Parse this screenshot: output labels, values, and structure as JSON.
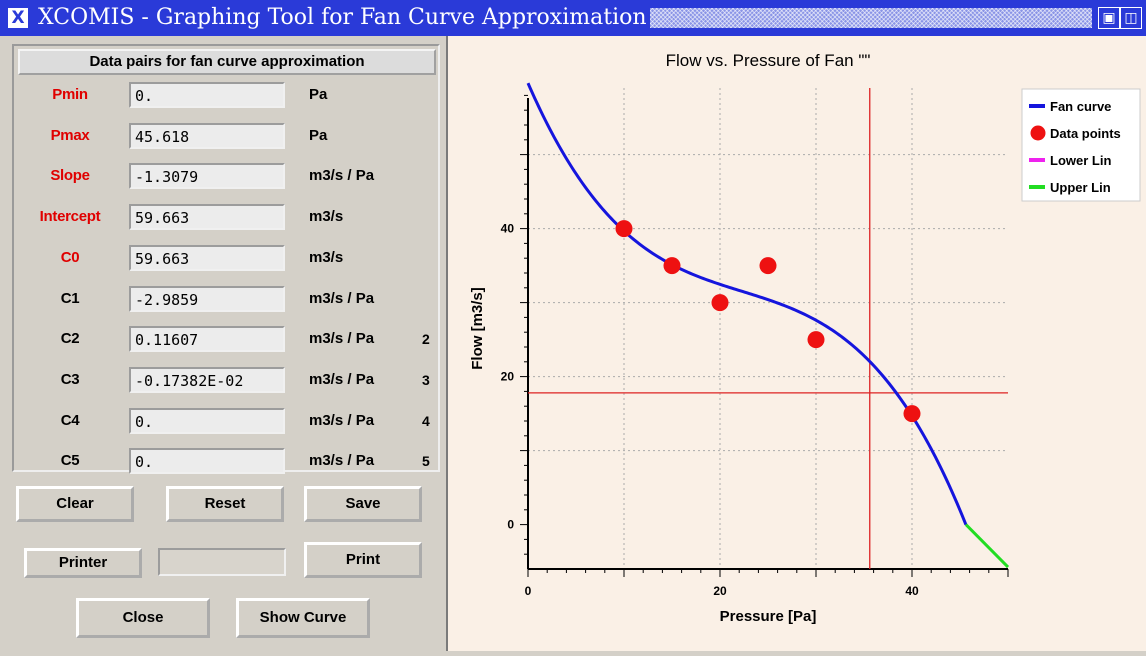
{
  "window": {
    "icon": "X",
    "title": "XCOMIS - Graphing Tool for Fan Curve Approximation",
    "controls": [
      "maximize-icon",
      "iconify-icon"
    ]
  },
  "panel": {
    "header": "Data pairs for fan curve approximation",
    "params": [
      {
        "label": "Pmin",
        "value": "0.",
        "unit": "Pa",
        "exp": "",
        "color": "#e00000"
      },
      {
        "label": "Pmax",
        "value": "45.618",
        "unit": "Pa",
        "exp": "",
        "color": "#e00000"
      },
      {
        "label": "Slope",
        "value": "-1.3079",
        "unit": "m3/s / Pa",
        "exp": "",
        "color": "#e00000"
      },
      {
        "label": "Intercept",
        "value": "59.663",
        "unit": "m3/s",
        "exp": "",
        "color": "#e00000"
      },
      {
        "label": "C0",
        "value": "59.663",
        "unit": "m3/s",
        "exp": "",
        "color": "#e00000"
      },
      {
        "label": "C1",
        "value": "-2.9859",
        "unit": "m3/s / Pa",
        "exp": "",
        "color": "#000000"
      },
      {
        "label": "C2",
        "value": "0.11607",
        "unit": "m3/s / Pa",
        "exp": "2",
        "color": "#000000"
      },
      {
        "label": "C3",
        "value": "-0.17382E-02",
        "unit": "m3/s / Pa",
        "exp": "3",
        "color": "#000000"
      },
      {
        "label": "C4",
        "value": "0.",
        "unit": "m3/s / Pa",
        "exp": "4",
        "color": "#000000"
      },
      {
        "label": "C5",
        "value": "0.",
        "unit": "m3/s / Pa",
        "exp": "5",
        "color": "#000000"
      }
    ]
  },
  "buttons": {
    "clear": "Clear",
    "reset": "Reset",
    "save": "Save",
    "printer": "Printer",
    "printer_field": "",
    "print": "Print",
    "close": "Close",
    "show_curve": "Show Curve"
  },
  "chart_data": {
    "type": "line",
    "title": "Flow vs. Pressure of Fan \"\"",
    "xlabel": "Pressure [Pa]",
    "ylabel": "Flow [m3/s]",
    "xlim": [
      0,
      50
    ],
    "ylim": [
      -6,
      59
    ],
    "xticks": [
      0,
      20,
      40
    ],
    "yticks": [
      0,
      20,
      40
    ],
    "grid": true,
    "legend_position": "right",
    "crosshair": {
      "x": 35.6,
      "y": 17.8
    },
    "fan_curve": {
      "x_range": [
        0,
        45.618
      ],
      "coefficients": [
        59.663,
        -2.9859,
        0.11607,
        -0.0017382,
        0,
        0
      ]
    },
    "upper_lin": {
      "x": [
        45.618,
        50
      ],
      "slope": -1.3079,
      "intercept": 59.663
    },
    "data_points": [
      [
        10,
        40
      ],
      [
        15,
        35
      ],
      [
        20,
        30
      ],
      [
        25,
        35
      ],
      [
        30,
        25
      ],
      [
        40,
        15
      ]
    ],
    "legend": [
      {
        "label": "Fan curve",
        "color": "#1515dd"
      },
      {
        "label": "Data points",
        "color": "#ee1111"
      },
      {
        "label": "Lower Lin",
        "color": "#ee22ee"
      },
      {
        "label": "Upper Lin",
        "color": "#22dd22"
      }
    ],
    "colors": {
      "fan_curve": "#1515dd",
      "data_points": "#ee1111",
      "upper_lin": "#22dd22",
      "crosshair": "#dd2222",
      "grid": "#aaaaaa"
    }
  }
}
